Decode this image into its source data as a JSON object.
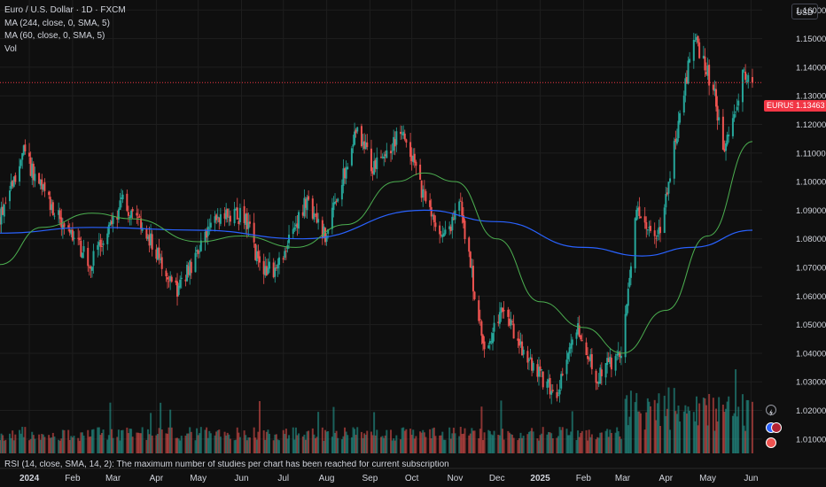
{
  "legend": {
    "symbol": "Euro / U.S. Dollar · 1D · FXCM",
    "ma1": "MA (244, close, 0, SMA, 5)",
    "ma2": "MA (60, close, 0, SMA, 5)",
    "vol": "Vol"
  },
  "currency_button": "USD",
  "price_badge": {
    "symbol": "EURUSD",
    "price": "1.13463"
  },
  "rsi_note": "RSI (14, close, SMA, 14, 2): The maximum number of studies per chart has been reached for current subscription",
  "colors": {
    "background": "#0f0f0f",
    "up": "#26a69a",
    "down": "#ef5350",
    "ma244": "#2962ff",
    "ma60": "#4caf50",
    "price_line": "#f23645",
    "grid": "#1e1e1e"
  },
  "icons": [
    "lightning-icon",
    "dollar-icon",
    "us-flag-icon",
    "eu-flag-icon"
  ],
  "chart_data": {
    "type": "candlestick",
    "title": "Euro / U.S. Dollar · 1D · FXCM",
    "y_ticks": [
      "1.16000",
      "1.15000",
      "1.14000",
      "1.13000",
      "1.12000",
      "1.11000",
      "1.10000",
      "1.09000",
      "1.08000",
      "1.07000",
      "1.06000",
      "1.05000",
      "1.04000",
      "1.03000",
      "1.02000",
      "1.01000"
    ],
    "ylim": [
      1.005,
      1.1635
    ],
    "x_ticks": [
      "2024",
      "Feb",
      "Mar",
      "Apr",
      "May",
      "Jun",
      "Jul",
      "Aug",
      "Sep",
      "Oct",
      "Nov",
      "Dec",
      "2025",
      "Feb",
      "Mar",
      "Apr",
      "May",
      "Jun"
    ],
    "x_tick_dates": [
      "2024-01-01",
      "2024-02-01",
      "2024-03-01",
      "2024-04-01",
      "2024-05-01",
      "2024-06-01",
      "2024-07-01",
      "2024-08-01",
      "2024-09-01",
      "2024-10-01",
      "2024-11-01",
      "2024-12-01",
      "2025-01-01",
      "2025-02-01",
      "2025-03-01",
      "2025-04-01",
      "2025-05-01",
      "2025-06-01"
    ],
    "x_range": [
      "2023-12-11",
      "2025-06-09"
    ],
    "last_price": 1.13463,
    "close_path": [
      {
        "date": "2023-12-11",
        "close": 1.088
      },
      {
        "date": "2023-12-28",
        "close": 1.11
      },
      {
        "date": "2024-01-10",
        "close": 1.097
      },
      {
        "date": "2024-01-25",
        "close": 1.085
      },
      {
        "date": "2024-02-14",
        "close": 1.071
      },
      {
        "date": "2024-03-08",
        "close": 1.093
      },
      {
        "date": "2024-03-28",
        "close": 1.079
      },
      {
        "date": "2024-04-16",
        "close": 1.062
      },
      {
        "date": "2024-05-03",
        "close": 1.077
      },
      {
        "date": "2024-05-15",
        "close": 1.088
      },
      {
        "date": "2024-06-04",
        "close": 1.088
      },
      {
        "date": "2024-06-14",
        "close": 1.07
      },
      {
        "date": "2024-06-26",
        "close": 1.069
      },
      {
        "date": "2024-07-17",
        "close": 1.093
      },
      {
        "date": "2024-07-31",
        "close": 1.081
      },
      {
        "date": "2024-08-23",
        "close": 1.119
      },
      {
        "date": "2024-09-03",
        "close": 1.104
      },
      {
        "date": "2024-09-25",
        "close": 1.118
      },
      {
        "date": "2024-10-10",
        "close": 1.094
      },
      {
        "date": "2024-10-23",
        "close": 1.079
      },
      {
        "date": "2024-11-05",
        "close": 1.092
      },
      {
        "date": "2024-11-22",
        "close": 1.04
      },
      {
        "date": "2024-12-06",
        "close": 1.056
      },
      {
        "date": "2024-12-20",
        "close": 1.039
      },
      {
        "date": "2025-01-13",
        "close": 1.025
      },
      {
        "date": "2025-01-27",
        "close": 1.049
      },
      {
        "date": "2025-02-10",
        "close": 1.032
      },
      {
        "date": "2025-02-28",
        "close": 1.04
      },
      {
        "date": "2025-03-11",
        "close": 1.09
      },
      {
        "date": "2025-03-26",
        "close": 1.079
      },
      {
        "date": "2025-04-10",
        "close": 1.12
      },
      {
        "date": "2025-04-21",
        "close": 1.151
      },
      {
        "date": "2025-05-06",
        "close": 1.131
      },
      {
        "date": "2025-05-12",
        "close": 1.109
      },
      {
        "date": "2025-05-26",
        "close": 1.137
      },
      {
        "date": "2025-06-02",
        "close": 1.1346
      }
    ],
    "ma244": {
      "name": "MA (244, close, 0, SMA, 5)",
      "points": [
        {
          "date": "2023-12-11",
          "value": 1.082
        },
        {
          "date": "2024-02-15",
          "value": 1.084
        },
        {
          "date": "2024-05-01",
          "value": 1.083
        },
        {
          "date": "2024-07-15",
          "value": 1.08
        },
        {
          "date": "2024-10-10",
          "value": 1.09
        },
        {
          "date": "2024-12-01",
          "value": 1.086
        },
        {
          "date": "2025-02-01",
          "value": 1.077
        },
        {
          "date": "2025-03-15",
          "value": 1.074
        },
        {
          "date": "2025-04-20",
          "value": 1.077
        },
        {
          "date": "2025-06-02",
          "value": 1.083
        }
      ]
    },
    "ma60": {
      "name": "MA (60, close, 0, SMA, 5)",
      "points": [
        {
          "date": "2023-12-11",
          "value": 1.071
        },
        {
          "date": "2024-01-10",
          "value": 1.084
        },
        {
          "date": "2024-02-15",
          "value": 1.089
        },
        {
          "date": "2024-03-15",
          "value": 1.087
        },
        {
          "date": "2024-05-01",
          "value": 1.079
        },
        {
          "date": "2024-06-01",
          "value": 1.081
        },
        {
          "date": "2024-07-10",
          "value": 1.077
        },
        {
          "date": "2024-08-15",
          "value": 1.085
        },
        {
          "date": "2024-09-20",
          "value": 1.1
        },
        {
          "date": "2024-10-10",
          "value": 1.103
        },
        {
          "date": "2024-11-01",
          "value": 1.1
        },
        {
          "date": "2024-12-01",
          "value": 1.08
        },
        {
          "date": "2025-01-01",
          "value": 1.058
        },
        {
          "date": "2025-02-01",
          "value": 1.049
        },
        {
          "date": "2025-03-01",
          "value": 1.04
        },
        {
          "date": "2025-04-01",
          "value": 1.055
        },
        {
          "date": "2025-05-01",
          "value": 1.081
        },
        {
          "date": "2025-06-02",
          "value": 1.114
        }
      ]
    },
    "grid": true
  }
}
